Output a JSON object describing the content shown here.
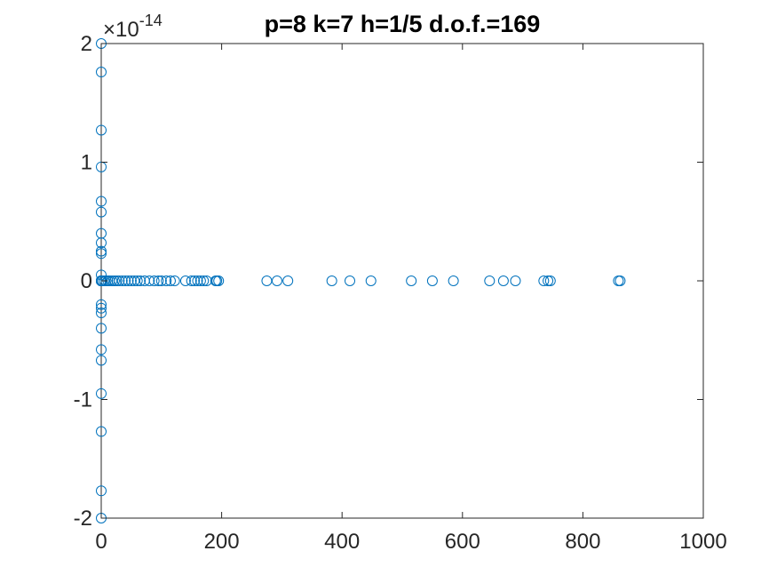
{
  "chart_data": {
    "type": "scatter",
    "title": "p=8 k=7 h=1/5 d.o.f.=169",
    "xlabel": "",
    "ylabel": "",
    "xlim": [
      0,
      1000
    ],
    "ylim": [
      -2e-14,
      2e-14
    ],
    "y_exponent_label": {
      "base": "×10",
      "exponent": "-14"
    },
    "x_ticks": [
      0,
      200,
      400,
      600,
      800,
      1000
    ],
    "x_tick_labels": [
      "0",
      "200",
      "400",
      "600",
      "800",
      "1000"
    ],
    "y_ticks": [
      -2e-14,
      -1e-14,
      0,
      1e-14,
      2e-14
    ],
    "y_tick_labels": [
      "-2",
      "-1",
      "0",
      "1",
      "2"
    ],
    "grid": false,
    "marker": "open-circle",
    "marker_color": "#0072BD",
    "series": [
      {
        "x": [
          0,
          0,
          0,
          0,
          0,
          0,
          0,
          0,
          0,
          0,
          0,
          0,
          0,
          0,
          0,
          0,
          0,
          0,
          0,
          0,
          0,
          0,
          0,
          0,
          0,
          0,
          0,
          0,
          0,
          0,
          0,
          0,
          0,
          0,
          0,
          0,
          2,
          5,
          8,
          11,
          14,
          18,
          22,
          26,
          30,
          35,
          40,
          45,
          50,
          55,
          60,
          65,
          72,
          80,
          88,
          95,
          100,
          108,
          115,
          122,
          140,
          150,
          155,
          160,
          165,
          170,
          175,
          190,
          192,
          195,
          275,
          292,
          310,
          383,
          413,
          448,
          515,
          550,
          585,
          645,
          668,
          688,
          735,
          742,
          746,
          859,
          862
        ],
        "y": [
          2e-14,
          1.76e-14,
          1.27e-14,
          9.6e-15,
          6.7e-15,
          5.8e-15,
          4e-15,
          3.2e-15,
          2.5e-15,
          2.3e-15,
          5e-16,
          0,
          0,
          0,
          0,
          0,
          0,
          -2e-15,
          -2.3e-15,
          -2.7e-15,
          -4e-15,
          -5.8e-15,
          -6.7e-15,
          -9.5e-15,
          -1.27e-14,
          -1.77e-14,
          -2e-14,
          0,
          0,
          0,
          0,
          0,
          0,
          0,
          0,
          0,
          0,
          0,
          0,
          0,
          0,
          0,
          0,
          0,
          0,
          0,
          0,
          0,
          0,
          0,
          0,
          0,
          0,
          0,
          0,
          0,
          0,
          0,
          0,
          0,
          0,
          0,
          0,
          0,
          0,
          0,
          0,
          0,
          0,
          0,
          0,
          0,
          0,
          0,
          0,
          0,
          0,
          0,
          0,
          0,
          0,
          0,
          0,
          0,
          0,
          0,
          0
        ]
      }
    ]
  }
}
